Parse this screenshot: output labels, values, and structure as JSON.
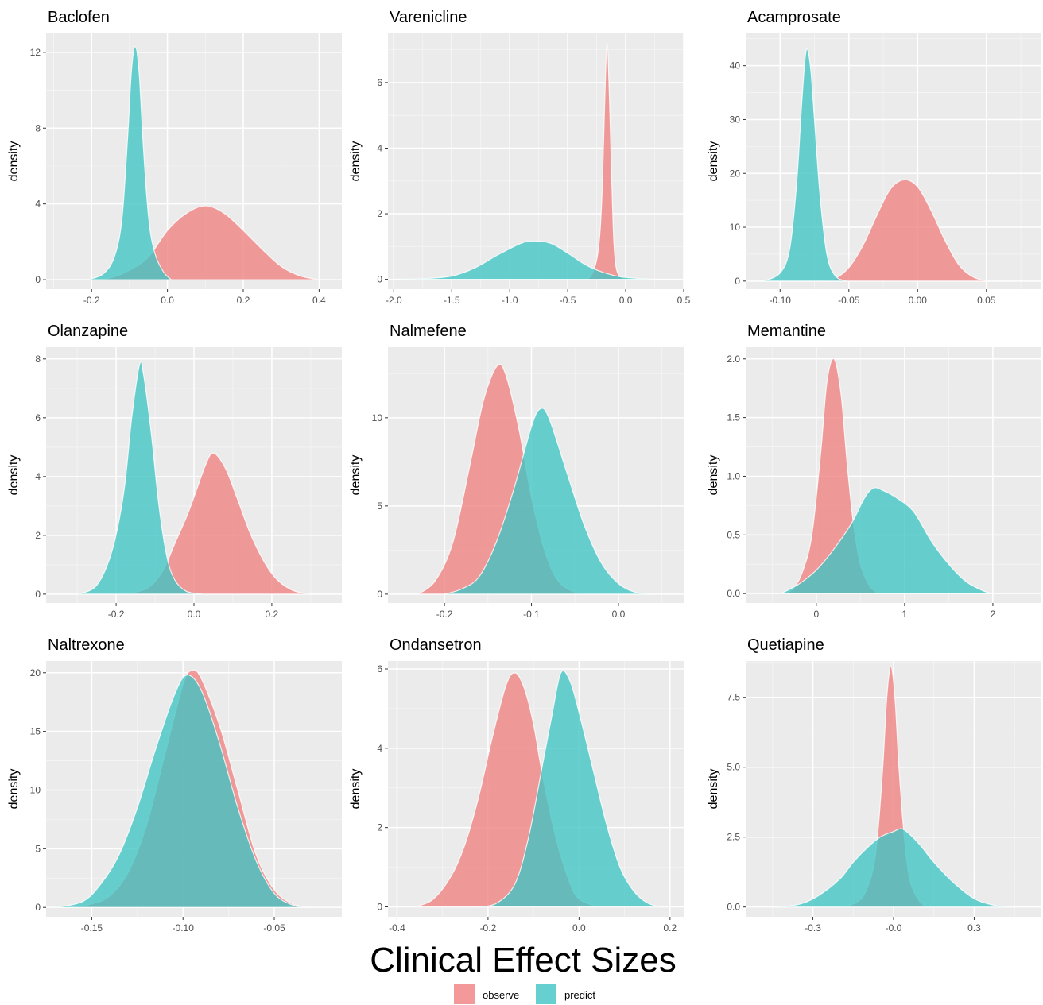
{
  "figure": {
    "title": "Clinical Effect Sizes"
  },
  "legend": {
    "items": [
      {
        "label": "observe",
        "color": "#F08080"
      },
      {
        "label": "predict",
        "color": "#40C4C4"
      }
    ]
  },
  "chart_data": [
    {
      "type": "area",
      "title": "Baclofen",
      "ylabel": "density",
      "xlim": [
        -0.32,
        0.46
      ],
      "ylim": [
        -0.5,
        13
      ],
      "xticks": [
        -0.2,
        0.0,
        0.2,
        0.4
      ],
      "xtick_labels": [
        "-0.2",
        "0.0",
        "0.2",
        "0.4"
      ],
      "yticks": [
        0,
        4,
        8,
        12
      ],
      "ytick_labels": [
        "0",
        "4",
        "8",
        "12"
      ],
      "series": [
        {
          "name": "observe",
          "color": "#F08080",
          "x": [
            -0.2,
            -0.15,
            -0.1,
            -0.05,
            0.0,
            0.05,
            0.1,
            0.15,
            0.2,
            0.25,
            0.3,
            0.35,
            0.4
          ],
          "y": [
            0,
            0.1,
            0.5,
            1.2,
            2.6,
            3.5,
            3.9,
            3.5,
            2.6,
            1.6,
            0.7,
            0.2,
            0
          ]
        },
        {
          "name": "predict",
          "color": "#40C4C4",
          "x": [
            -0.21,
            -0.17,
            -0.14,
            -0.12,
            -0.105,
            -0.095,
            -0.085,
            -0.075,
            -0.065,
            -0.055,
            -0.045,
            -0.03,
            -0.01,
            0.01
          ],
          "y": [
            0,
            0.3,
            1.2,
            3.2,
            7.5,
            11.0,
            12.3,
            11.0,
            7.5,
            4.5,
            2.5,
            1.2,
            0.4,
            0
          ]
        }
      ]
    },
    {
      "type": "area",
      "title": "Varenicline",
      "ylabel": "density",
      "xlim": [
        -2.05,
        0.5
      ],
      "ylim": [
        -0.3,
        7.5
      ],
      "xticks": [
        -2.0,
        -1.5,
        -1.0,
        -0.5,
        0.0,
        0.5
      ],
      "xtick_labels": [
        "-2.0",
        "-1.5",
        "-1.0",
        "-0.5",
        "0.0",
        "0.5"
      ],
      "yticks": [
        0,
        2,
        4,
        6
      ],
      "ytick_labels": [
        "0",
        "2",
        "4",
        "6"
      ],
      "series": [
        {
          "name": "observe",
          "color": "#F08080",
          "x": [
            -0.35,
            -0.3,
            -0.25,
            -0.22,
            -0.2,
            -0.18,
            -0.16,
            -0.14,
            -0.12,
            -0.1,
            -0.07,
            0.0
          ],
          "y": [
            0,
            0.1,
            0.6,
            1.5,
            3.0,
            5.5,
            7.2,
            5.5,
            3.0,
            1.0,
            0.2,
            0
          ]
        },
        {
          "name": "predict",
          "color": "#40C4C4",
          "x": [
            -2.0,
            -1.75,
            -1.5,
            -1.3,
            -1.1,
            -0.9,
            -0.8,
            -0.65,
            -0.5,
            -0.35,
            -0.2,
            -0.05,
            0.1,
            0.25
          ],
          "y": [
            0,
            0.02,
            0.1,
            0.35,
            0.75,
            1.1,
            1.17,
            1.1,
            0.8,
            0.45,
            0.22,
            0.08,
            0.03,
            0
          ]
        }
      ]
    },
    {
      "type": "area",
      "title": "Acamprosate",
      "ylabel": "density",
      "xlim": [
        -0.125,
        0.09
      ],
      "ylim": [
        -1.5,
        46
      ],
      "xticks": [
        -0.1,
        -0.05,
        0.0,
        0.05
      ],
      "xtick_labels": [
        "-0.10",
        "-0.05",
        "0.00",
        "0.05"
      ],
      "yticks": [
        0,
        10,
        20,
        30,
        40
      ],
      "ytick_labels": [
        "0",
        "10",
        "20",
        "30",
        "40"
      ],
      "series": [
        {
          "name": "observe",
          "color": "#F08080",
          "x": [
            -0.07,
            -0.06,
            -0.05,
            -0.04,
            -0.03,
            -0.02,
            -0.01,
            0.0,
            0.01,
            0.02,
            0.03,
            0.04,
            0.05
          ],
          "y": [
            0,
            0.5,
            2.5,
            6.5,
            12,
            17,
            18.8,
            17.5,
            13,
            7.5,
            3.0,
            0.8,
            0
          ]
        },
        {
          "name": "predict",
          "color": "#40C4C4",
          "x": [
            -0.112,
            -0.1,
            -0.093,
            -0.088,
            -0.084,
            -0.081,
            -0.078,
            -0.075,
            -0.071,
            -0.066,
            -0.06,
            -0.052
          ],
          "y": [
            0,
            1.5,
            6,
            18,
            34,
            42.8,
            40,
            30,
            16,
            5,
            1,
            0
          ]
        }
      ]
    },
    {
      "type": "area",
      "title": "Olanzapine",
      "ylabel": "density",
      "xlim": [
        -0.38,
        0.38
      ],
      "ylim": [
        -0.3,
        8.4
      ],
      "xticks": [
        -0.2,
        0.0,
        0.2
      ],
      "xtick_labels": [
        "-0.2",
        "0.0",
        "0.2"
      ],
      "yticks": [
        0,
        2,
        4,
        6,
        8
      ],
      "ytick_labels": [
        "0",
        "2",
        "4",
        "6",
        "8"
      ],
      "series": [
        {
          "name": "observe",
          "color": "#F08080",
          "x": [
            -0.18,
            -0.12,
            -0.08,
            -0.05,
            -0.02,
            0.0,
            0.03,
            0.05,
            0.08,
            0.11,
            0.15,
            0.2,
            0.25,
            0.3
          ],
          "y": [
            0,
            0.2,
            0.8,
            1.7,
            2.6,
            3.3,
            4.4,
            4.8,
            4.3,
            3.3,
            1.9,
            0.7,
            0.15,
            0
          ]
        },
        {
          "name": "predict",
          "color": "#40C4C4",
          "x": [
            -0.3,
            -0.25,
            -0.21,
            -0.18,
            -0.16,
            -0.14,
            -0.13,
            -0.11,
            -0.09,
            -0.07,
            -0.05,
            -0.02,
            0.02
          ],
          "y": [
            0,
            0.3,
            1.5,
            3.5,
            6.0,
            7.8,
            7.5,
            5.5,
            3.0,
            1.3,
            0.5,
            0.1,
            0
          ]
        }
      ]
    },
    {
      "type": "area",
      "title": "Nalmefene",
      "ylabel": "density",
      "xlim": [
        -0.265,
        0.075
      ],
      "ylim": [
        -0.5,
        14
      ],
      "xticks": [
        -0.2,
        -0.1,
        0.0
      ],
      "xtick_labels": [
        "-0.2",
        "-0.1",
        "0.0"
      ],
      "yticks": [
        0,
        5,
        10
      ],
      "ytick_labels": [
        "0",
        "5",
        "10"
      ],
      "series": [
        {
          "name": "observe",
          "color": "#F08080",
          "x": [
            -0.23,
            -0.21,
            -0.19,
            -0.17,
            -0.155,
            -0.14,
            -0.13,
            -0.115,
            -0.1,
            -0.085,
            -0.07,
            -0.05,
            -0.03
          ],
          "y": [
            0,
            0.8,
            3.0,
            7.5,
            11.0,
            12.9,
            12.5,
            9.5,
            5.5,
            2.5,
            0.8,
            0.1,
            0
          ]
        },
        {
          "name": "predict",
          "color": "#40C4C4",
          "x": [
            -0.2,
            -0.18,
            -0.16,
            -0.14,
            -0.12,
            -0.1,
            -0.09,
            -0.08,
            -0.06,
            -0.04,
            -0.02,
            0.0,
            0.02,
            0.04
          ],
          "y": [
            0,
            0.3,
            1.0,
            3.0,
            6.0,
            9.5,
            10.5,
            10.0,
            7.0,
            4.0,
            1.8,
            0.6,
            0.1,
            0
          ]
        }
      ]
    },
    {
      "type": "area",
      "title": "Memantine",
      "ylabel": "density",
      "xlim": [
        -0.8,
        2.55
      ],
      "ylim": [
        -0.08,
        2.1
      ],
      "xticks": [
        0,
        1,
        2
      ],
      "xtick_labels": [
        "0",
        "1",
        "2"
      ],
      "yticks": [
        0.0,
        0.5,
        1.0,
        1.5,
        2.0
      ],
      "ytick_labels": [
        "0.0",
        "0.5",
        "1.0",
        "1.5",
        "2.0"
      ],
      "series": [
        {
          "name": "observe",
          "color": "#F08080",
          "x": [
            -0.35,
            -0.25,
            -0.15,
            -0.05,
            0.05,
            0.12,
            0.2,
            0.28,
            0.35,
            0.42,
            0.5,
            0.6,
            0.7
          ],
          "y": [
            0,
            0.05,
            0.2,
            0.5,
            1.2,
            1.8,
            2.0,
            1.7,
            1.1,
            0.6,
            0.25,
            0.07,
            0
          ]
        },
        {
          "name": "predict",
          "color": "#40C4C4",
          "x": [
            -0.4,
            -0.2,
            0.0,
            0.2,
            0.4,
            0.55,
            0.65,
            0.75,
            0.9,
            1.1,
            1.3,
            1.5,
            1.7,
            1.9,
            2.0
          ],
          "y": [
            0,
            0.08,
            0.2,
            0.38,
            0.6,
            0.82,
            0.9,
            0.88,
            0.82,
            0.7,
            0.45,
            0.25,
            0.1,
            0.02,
            0
          ]
        }
      ]
    },
    {
      "type": "area",
      "title": "Naltrexone",
      "ylabel": "density",
      "xlim": [
        -0.175,
        -0.013
      ],
      "ylim": [
        -0.8,
        21
      ],
      "xticks": [
        -0.15,
        -0.1,
        -0.05
      ],
      "xtick_labels": [
        "-0.15",
        "-0.10",
        "-0.05"
      ],
      "yticks": [
        0,
        5,
        10,
        15,
        20
      ],
      "ytick_labels": [
        "0",
        "5",
        "10",
        "15",
        "20"
      ],
      "series": [
        {
          "name": "observe",
          "color": "#F08080",
          "x": [
            -0.165,
            -0.15,
            -0.14,
            -0.13,
            -0.12,
            -0.11,
            -0.1,
            -0.095,
            -0.09,
            -0.08,
            -0.07,
            -0.06,
            -0.05,
            -0.04,
            -0.03
          ],
          "y": [
            0,
            0.3,
            1.0,
            3.0,
            7.0,
            13.0,
            19.0,
            20.2,
            19.5,
            15.5,
            10.0,
            4.5,
            1.5,
            0.3,
            0
          ]
        },
        {
          "name": "predict",
          "color": "#40C4C4",
          "x": [
            -0.17,
            -0.155,
            -0.145,
            -0.135,
            -0.125,
            -0.115,
            -0.105,
            -0.098,
            -0.09,
            -0.08,
            -0.07,
            -0.06,
            -0.05,
            -0.04,
            -0.032
          ],
          "y": [
            0,
            0.5,
            2.0,
            4.5,
            8.5,
            13.5,
            18.0,
            19.8,
            18.5,
            14.0,
            8.5,
            4.0,
            1.2,
            0.2,
            0
          ]
        }
      ]
    },
    {
      "type": "area",
      "title": "Ondansetron",
      "ylabel": "density",
      "xlim": [
        -0.42,
        0.23
      ],
      "ylim": [
        -0.25,
        6.2
      ],
      "xticks": [
        -0.4,
        -0.2,
        0.0,
        0.2
      ],
      "xtick_labels": [
        "-0.4",
        "-0.2",
        "0.0",
        "0.2"
      ],
      "yticks": [
        0,
        2,
        4,
        6
      ],
      "ytick_labels": [
        "0",
        "2",
        "4",
        "6"
      ],
      "series": [
        {
          "name": "observe",
          "color": "#F08080",
          "x": [
            -0.36,
            -0.32,
            -0.28,
            -0.25,
            -0.22,
            -0.19,
            -0.16,
            -0.14,
            -0.12,
            -0.1,
            -0.08,
            -0.05,
            -0.02,
            0.0,
            0.04
          ],
          "y": [
            0,
            0.2,
            0.8,
            1.6,
            2.8,
            4.3,
            5.6,
            5.9,
            5.5,
            4.6,
            3.3,
            1.7,
            0.6,
            0.2,
            0
          ]
        },
        {
          "name": "predict",
          "color": "#40C4C4",
          "x": [
            -0.22,
            -0.18,
            -0.14,
            -0.11,
            -0.08,
            -0.06,
            -0.04,
            -0.02,
            0.0,
            0.03,
            0.06,
            0.09,
            0.12,
            0.15,
            0.18
          ],
          "y": [
            0,
            0.1,
            0.6,
            1.8,
            3.6,
            4.8,
            5.9,
            5.7,
            4.9,
            3.5,
            2.1,
            1.0,
            0.4,
            0.1,
            0
          ]
        }
      ]
    },
    {
      "type": "area",
      "title": "Quetiapine",
      "ylabel": "density",
      "xlim": [
        -0.55,
        0.55
      ],
      "ylim": [
        -0.35,
        8.8
      ],
      "xticks": [
        -0.3,
        0.0,
        0.3
      ],
      "xtick_labels": [
        "-0.3",
        "-0.0",
        "0.3"
      ],
      "yticks": [
        0.0,
        2.5,
        5.0,
        7.5
      ],
      "ytick_labels": [
        "0.0",
        "2.5",
        "5.0",
        "7.5"
      ],
      "series": [
        {
          "name": "observe",
          "color": "#F08080",
          "x": [
            -0.18,
            -0.12,
            -0.08,
            -0.06,
            -0.04,
            -0.025,
            -0.01,
            0.005,
            0.02,
            0.04,
            0.06,
            0.09,
            0.12
          ],
          "y": [
            0,
            0.3,
            1.2,
            2.5,
            5.0,
            7.5,
            8.6,
            7.5,
            5.0,
            2.5,
            1.0,
            0.3,
            0
          ]
        },
        {
          "name": "predict",
          "color": "#40C4C4",
          "x": [
            -0.44,
            -0.35,
            -0.28,
            -0.2,
            -0.15,
            -0.1,
            -0.05,
            0.0,
            0.03,
            0.06,
            0.1,
            0.15,
            0.22,
            0.3,
            0.38,
            0.45
          ],
          "y": [
            0,
            0.1,
            0.4,
            1.0,
            1.6,
            2.1,
            2.5,
            2.7,
            2.8,
            2.6,
            2.2,
            1.6,
            0.9,
            0.3,
            0.05,
            0
          ]
        }
      ]
    }
  ]
}
